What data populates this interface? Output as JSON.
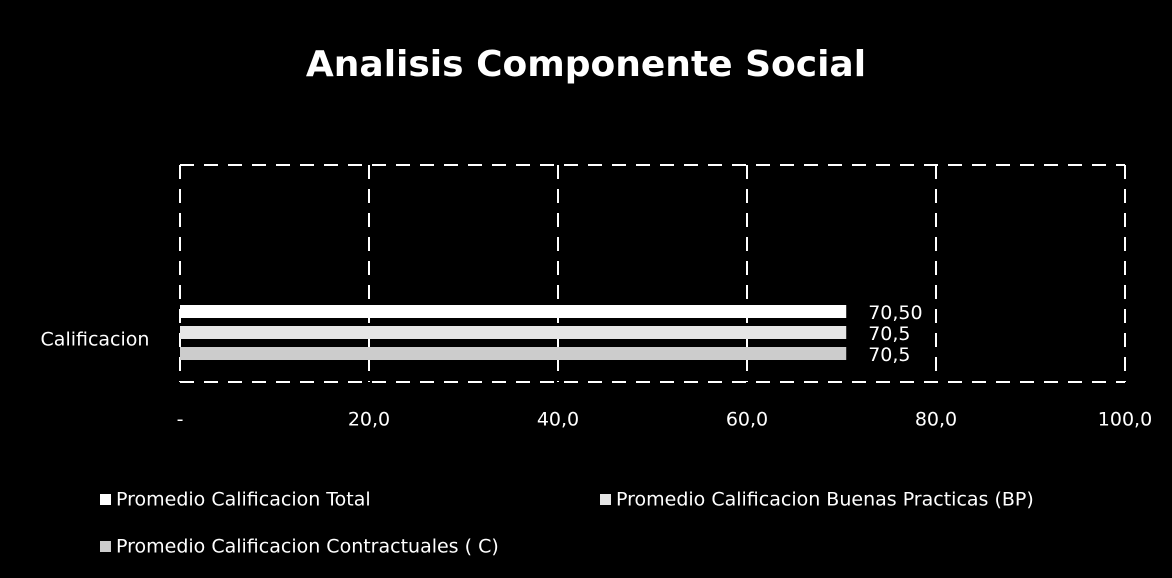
{
  "chart_data": {
    "type": "bar",
    "orientation": "horizontal",
    "title": "Analisis Componente Social",
    "categories": [
      "Calificacion"
    ],
    "series": [
      {
        "name": "Promedio Calificacion Total",
        "color": "#ffffff",
        "values": [
          70.5
        ],
        "value_labels": [
          "70,50"
        ]
      },
      {
        "name": "Promedio Calificacion Buenas Practicas  (BP)",
        "color": "#e6e6e6",
        "values": [
          70.5
        ],
        "value_labels": [
          "70,5"
        ]
      },
      {
        "name": "Promedio Calificacion Contractuales ( C)",
        "color": "#cccccc",
        "values": [
          70.5
        ],
        "value_labels": [
          "70,5"
        ]
      }
    ],
    "xlim": [
      0,
      100
    ],
    "xticks": [
      {
        "value": 0,
        "label": "-"
      },
      {
        "value": 20,
        "label": "20,0"
      },
      {
        "value": 40,
        "label": "40,0"
      },
      {
        "value": 60,
        "label": "60,0"
      },
      {
        "value": 80,
        "label": "80,0"
      },
      {
        "value": 100,
        "label": "100,0"
      }
    ],
    "grid": true,
    "legend": "bottom"
  }
}
